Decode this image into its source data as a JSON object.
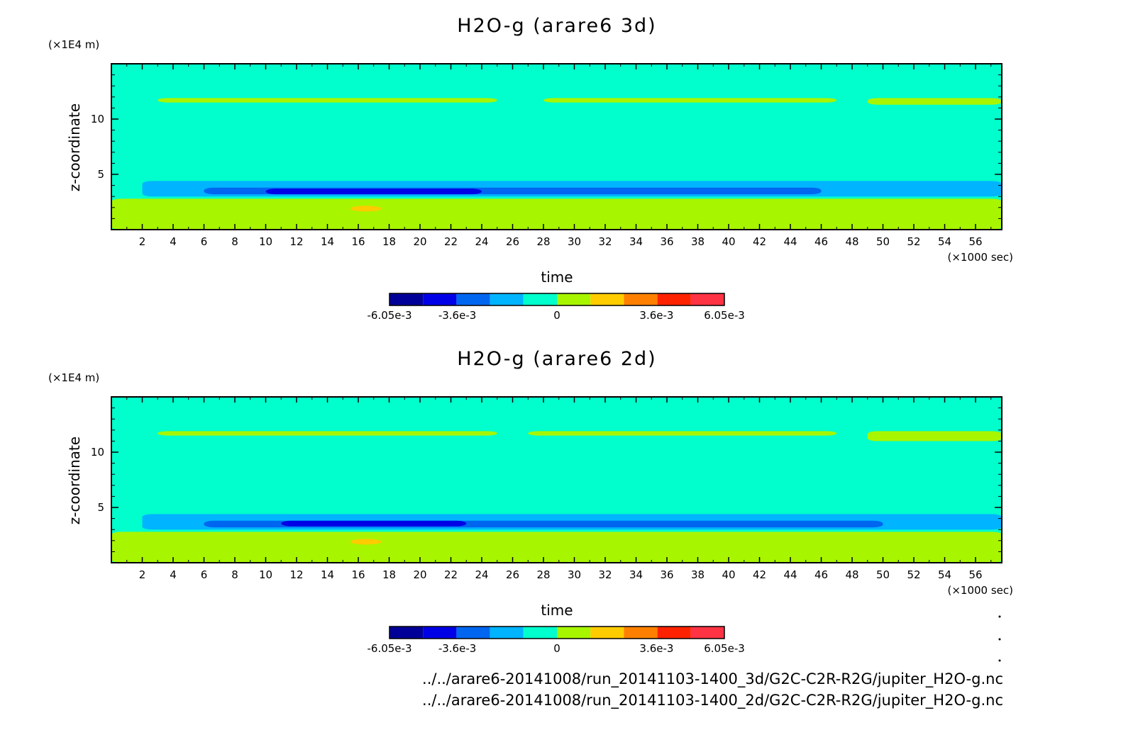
{
  "colors": {
    "levels": [
      "#000099",
      "#0000e6",
      "#0066f0",
      "#00b4ff",
      "#00ffcc",
      "#a8f500",
      "#ffcc00",
      "#ff8000",
      "#ff2200",
      "#ff3344"
    ],
    "background": "#00ffcc",
    "band_low": "#a8f500",
    "band_blue": "#0066f0",
    "band_blue_light": "#00b4ff",
    "band_dark": "#0000e6",
    "band_darkest": "#000099",
    "warm": "#ffcc00"
  },
  "chart_data": [
    {
      "type": "heatmap",
      "title": "H2O-g (arare6 3d)",
      "xlabel": "time",
      "ylabel": "z-coordinate",
      "x_unit": "(×1000 sec)",
      "y_unit": "(×1E4 m)",
      "xlim": [
        0,
        57.7
      ],
      "ylim": [
        0,
        15
      ],
      "x_ticks": [
        2,
        4,
        6,
        8,
        10,
        12,
        14,
        16,
        18,
        20,
        22,
        24,
        26,
        28,
        30,
        32,
        34,
        36,
        38,
        40,
        42,
        44,
        46,
        48,
        50,
        52,
        54,
        56
      ],
      "y_ticks": [
        5,
        10
      ],
      "colorbar": {
        "min": -0.00605,
        "max": 0.00605,
        "labels": [
          "-6.05e-3",
          "-3.6e-3",
          "0",
          "3.6e-3",
          "6.05e-3"
        ],
        "label_values": [
          -0.00605,
          -0.0036,
          0,
          0.0036,
          0.00605
        ]
      },
      "regions": [
        {
          "level": 5,
          "x": [
            0,
            57.7
          ],
          "z": [
            0,
            2.8
          ],
          "value": 0.0006
        },
        {
          "level": 3,
          "x": [
            2,
            57.7
          ],
          "z": [
            3.0,
            4.4
          ],
          "value": -0.0024
        },
        {
          "level": 2,
          "x": [
            6,
            46
          ],
          "z": [
            3.2,
            3.8
          ],
          "value": -0.0036
        },
        {
          "level": 1,
          "x": [
            10,
            24
          ],
          "z": [
            3.2,
            3.7
          ],
          "value": -0.0048
        },
        {
          "level": 5,
          "x": [
            3,
            25
          ],
          "z": [
            11.5,
            11.9
          ],
          "value": 0.0006
        },
        {
          "level": 5,
          "x": [
            28,
            47
          ],
          "z": [
            11.5,
            11.9
          ],
          "value": 0.0006
        },
        {
          "level": 5,
          "x": [
            49,
            57.7
          ],
          "z": [
            11.3,
            11.9
          ],
          "value": 0.0006
        }
      ]
    },
    {
      "type": "heatmap",
      "title": "H2O-g (arare6 2d)",
      "xlabel": "time",
      "ylabel": "z-coordinate",
      "x_unit": "(×1000 sec)",
      "y_unit": "(×1E4 m)",
      "xlim": [
        0,
        57.7
      ],
      "ylim": [
        0,
        15
      ],
      "x_ticks": [
        2,
        4,
        6,
        8,
        10,
        12,
        14,
        16,
        18,
        20,
        22,
        24,
        26,
        28,
        30,
        32,
        34,
        36,
        38,
        40,
        42,
        44,
        46,
        48,
        50,
        52,
        54,
        56
      ],
      "y_ticks": [
        5,
        10
      ],
      "colorbar": {
        "min": -0.00605,
        "max": 0.00605,
        "labels": [
          "-6.05e-3",
          "-3.6e-3",
          "0",
          "3.6e-3",
          "6.05e-3"
        ],
        "label_values": [
          -0.00605,
          -0.0036,
          0,
          0.0036,
          0.00605
        ]
      },
      "regions": [
        {
          "level": 5,
          "x": [
            0,
            57.7
          ],
          "z": [
            0,
            2.8
          ],
          "value": 0.0006
        },
        {
          "level": 3,
          "x": [
            2,
            57.7
          ],
          "z": [
            3.0,
            4.4
          ],
          "value": -0.0024
        },
        {
          "level": 2,
          "x": [
            6,
            50
          ],
          "z": [
            3.2,
            3.8
          ],
          "value": -0.0036
        },
        {
          "level": 1,
          "x": [
            11,
            23
          ],
          "z": [
            3.3,
            3.8
          ],
          "value": -0.0048
        },
        {
          "level": 5,
          "x": [
            3,
            25
          ],
          "z": [
            11.5,
            11.9
          ],
          "value": 0.0006
        },
        {
          "level": 5,
          "x": [
            27,
            47
          ],
          "z": [
            11.5,
            11.9
          ],
          "value": 0.0006
        },
        {
          "level": 5,
          "x": [
            49,
            57.7
          ],
          "z": [
            11.0,
            11.9
          ],
          "value": 0.0006
        }
      ]
    }
  ],
  "footer": {
    "path_3d": "../../arare6-20141008/run_20141103-1400_3d/G2C-C2R-R2G/jupiter_H2O-g.nc",
    "path_2d": "../../arare6-20141008/run_20141103-1400_2d/G2C-C2R-R2G/jupiter_H2O-g.nc"
  }
}
